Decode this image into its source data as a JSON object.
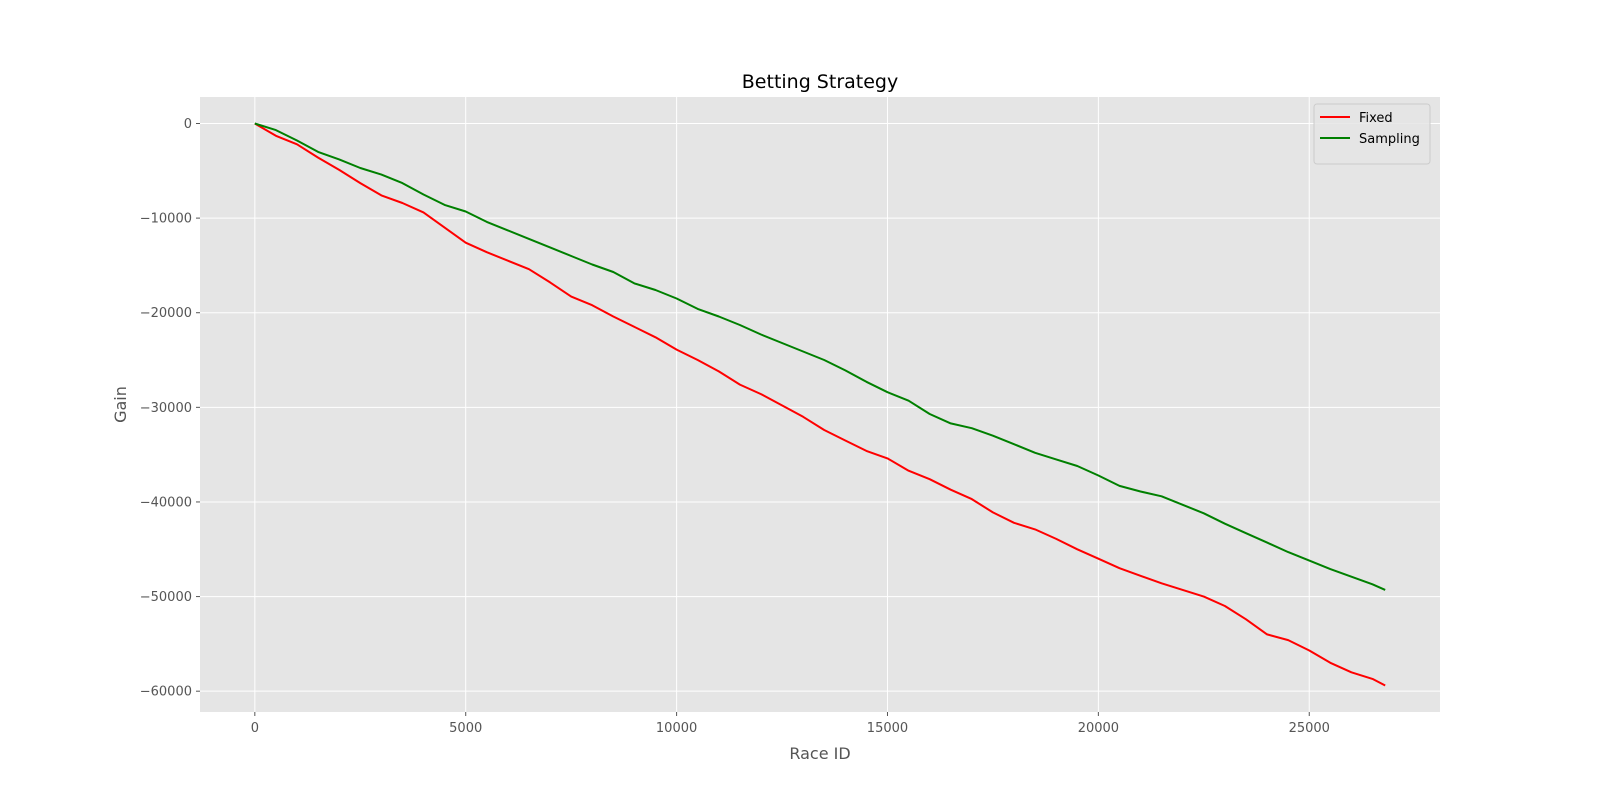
{
  "chart_data": {
    "type": "line",
    "title": "Betting Strategy",
    "xlabel": "Race ID",
    "ylabel": "Gain",
    "xlim": [
      -1300,
      28100
    ],
    "ylim": [
      -62200,
      2800
    ],
    "xticks": [
      0,
      5000,
      10000,
      15000,
      20000,
      25000
    ],
    "yticks": [
      0,
      -10000,
      -20000,
      -30000,
      -40000,
      -50000,
      -60000
    ],
    "grid": true,
    "legend_position": "top-right",
    "background": "#e5e5e5",
    "series": [
      {
        "name": "Fixed",
        "color": "#ff0000",
        "x": [
          0,
          500,
          1000,
          1500,
          2000,
          2500,
          3000,
          3500,
          4000,
          4500,
          5000,
          5500,
          6000,
          6500,
          7000,
          7500,
          8000,
          8500,
          9000,
          9500,
          10000,
          10500,
          11000,
          11500,
          12000,
          12500,
          13000,
          13500,
          14000,
          14500,
          15000,
          15500,
          16000,
          16500,
          17000,
          17500,
          18000,
          18500,
          19000,
          19500,
          20000,
          20500,
          21000,
          21500,
          22000,
          22500,
          23000,
          23500,
          24000,
          24500,
          25000,
          25500,
          26000,
          26500,
          26800
        ],
        "y": [
          0,
          -1300,
          -2200,
          -3600,
          -4900,
          -6300,
          -7600,
          -8400,
          -9400,
          -11000,
          -12600,
          -13600,
          -14500,
          -15400,
          -16800,
          -18300,
          -19200,
          -20400,
          -21500,
          -22600,
          -23900,
          -25000,
          -26200,
          -27600,
          -28600,
          -29800,
          -31000,
          -32400,
          -33500,
          -34600,
          -35400,
          -36700,
          -37600,
          -38700,
          -39700,
          -41100,
          -42200,
          -42900,
          -43900,
          -45000,
          -46000,
          -47000,
          -47800,
          -48600,
          -49300,
          -50000,
          -51000,
          -52400,
          -54000,
          -54600,
          -55700,
          -57000,
          -58000,
          -58700,
          -59400
        ]
      },
      {
        "name": "Sampling",
        "color": "#008000",
        "x": [
          0,
          500,
          1000,
          1500,
          2000,
          2500,
          3000,
          3500,
          4000,
          4500,
          5000,
          5500,
          6000,
          6500,
          7000,
          7500,
          8000,
          8500,
          9000,
          9500,
          10000,
          10500,
          11000,
          11500,
          12000,
          12500,
          13000,
          13500,
          14000,
          14500,
          15000,
          15500,
          16000,
          16500,
          17000,
          17500,
          18000,
          18500,
          19000,
          19500,
          20000,
          20500,
          21000,
          21500,
          22000,
          22500,
          23000,
          23500,
          24000,
          24500,
          25000,
          25500,
          26000,
          26500,
          26800
        ],
        "y": [
          0,
          -700,
          -1800,
          -3000,
          -3800,
          -4700,
          -5400,
          -6300,
          -7500,
          -8600,
          -9300,
          -10400,
          -11300,
          -12200,
          -13100,
          -14000,
          -14900,
          -15700,
          -16900,
          -17600,
          -18500,
          -19600,
          -20400,
          -21300,
          -22300,
          -23200,
          -24100,
          -25000,
          -26100,
          -27300,
          -28400,
          -29300,
          -30700,
          -31700,
          -32200,
          -33000,
          -33900,
          -34800,
          -35500,
          -36200,
          -37200,
          -38300,
          -38900,
          -39400,
          -40300,
          -41200,
          -42300,
          -43300,
          -44300,
          -45300,
          -46200,
          -47100,
          -47900,
          -48700,
          -49300
        ]
      }
    ]
  }
}
